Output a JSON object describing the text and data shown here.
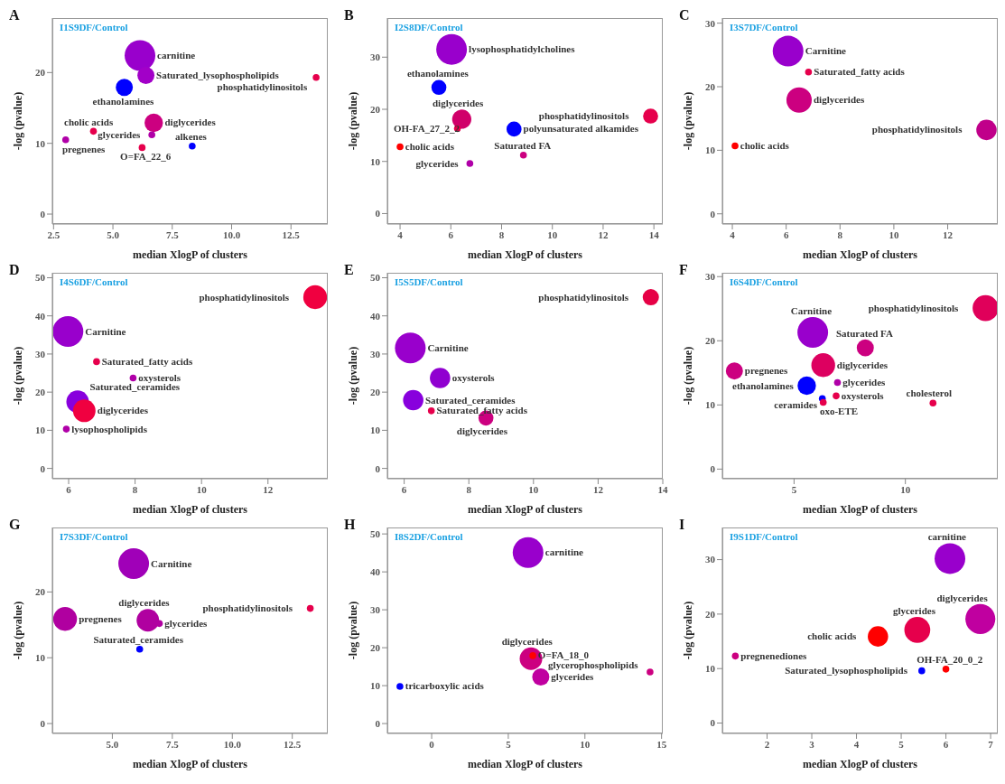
{
  "chart_data": [
    {
      "type": "bubble",
      "title": "I1S9DF/Control",
      "xlabel": "median XlogP of clusters",
      "ylabel": "-log (pvalue)",
      "xlim": [
        2.45,
        14.05
      ],
      "ylim": [
        -1.4,
        27.7
      ],
      "xticks": [
        {
          "value": 2.5,
          "label": "2.5"
        },
        {
          "value": 5,
          "label": "5.0"
        },
        {
          "value": 7.5,
          "label": "7.5"
        },
        {
          "value": 10,
          "label": "10.0"
        },
        {
          "value": 12.5,
          "label": "12.5"
        }
      ],
      "yticks": [
        0,
        10,
        20
      ],
      "x": [
        6.14,
        6.39,
        5.48,
        13.56,
        6.72,
        4.18,
        3.01,
        6.64,
        6.23,
        8.34
      ],
      "values": [
        22.4,
        19.6,
        17.9,
        19.3,
        12.9,
        11.7,
        10.5,
        11.2,
        9.4,
        9.6
      ],
      "sizes": [
        1,
        0.31,
        0.31,
        0.05,
        0.36,
        0.05,
        0.05,
        0.05,
        0.05,
        0.05
      ],
      "colors": [
        "#9900cc",
        "#a200c8",
        "#0000ff",
        "#e6004c",
        "#cc0080",
        "#e6004c",
        "#b000a8",
        "#b000a8",
        "#e6004c",
        "#0000ff"
      ],
      "annotations": [
        "A",
        {
          "text": "carnitine",
          "x": 6.14,
          "y": 22.4
        },
        {
          "text": "Saturated_lysophospholipids",
          "x": 6.39,
          "y": 19.6
        },
        {
          "text": "ethanolamines",
          "x": 5.48,
          "y": 17.9
        },
        {
          "text": "phosphatidylinositols",
          "x": 13.56,
          "y": 19.3
        },
        {
          "text": "diglycerides",
          "x": 6.72,
          "y": 12.9
        },
        {
          "text": "cholic acids",
          "x": 4.18,
          "y": 11.7
        },
        {
          "text": "pregnenes",
          "x": 3.01,
          "y": 10.5
        },
        {
          "text": "glycerides",
          "x": 6.64,
          "y": 11.2
        },
        {
          "text": "O=FA_22_6",
          "x": 6.23,
          "y": 9.4
        },
        {
          "text": "alkenes",
          "x": 8.34,
          "y": 9.6
        }
      ]
    },
    {
      "type": "bubble",
      "title": "I2S8DF/Control",
      "xlabel": "median XlogP of clusters",
      "ylabel": "-log (pvalue)",
      "xlim": [
        3.5,
        14.35
      ],
      "ylim": [
        -2,
        37.5
      ],
      "xticks": [
        4,
        6,
        8,
        10,
        12,
        14
      ],
      "yticks": [
        0,
        10,
        20,
        30
      ],
      "x": [
        6.03,
        5.53,
        6.43,
        6.26,
        4.0,
        6.75,
        8.49,
        8.86,
        13.87
      ],
      "values": [
        31.5,
        24.2,
        18.1,
        16.3,
        12.8,
        9.6,
        16.2,
        11.2,
        18.7
      ],
      "sizes": [
        1,
        0.24,
        0.39,
        0.05,
        0.05,
        0.05,
        0.24,
        0.05,
        0.24
      ],
      "colors": [
        "#9900cc",
        "#0000ff",
        "#d0006a",
        "#e6004c",
        "#ff0000",
        "#b000a8",
        "#0000ff",
        "#cc0080",
        "#e6004c"
      ],
      "annotations": [
        "B",
        {
          "text": "lysophosphatidylcholines",
          "x": 6.03,
          "y": 31.5
        },
        {
          "text": "ethanolamines",
          "x": 5.53,
          "y": 24.2
        },
        {
          "text": "diglycerides",
          "x": 6.43,
          "y": 18.1
        },
        {
          "text": "OH-FA_27_2_2",
          "x": 6.26,
          "y": 16.3
        },
        {
          "text": "cholic acids",
          "x": 4.0,
          "y": 12.8
        },
        {
          "text": "glycerides",
          "x": 6.75,
          "y": 9.6
        },
        {
          "text": "polyunsaturated alkamides",
          "x": 8.49,
          "y": 16.2
        },
        {
          "text": "Saturated FA",
          "x": 8.86,
          "y": 11.2
        },
        {
          "text": "phosphatidylinositols",
          "x": 13.87,
          "y": 18.7
        }
      ]
    },
    {
      "type": "bubble",
      "title": "I3S7DF/Control",
      "xlabel": "median XlogP of clusters",
      "ylabel": "-log (pvalue)",
      "xlim": [
        3.63,
        13.86
      ],
      "ylim": [
        -1.6,
        30.8
      ],
      "xticks": [
        4,
        6,
        8,
        10,
        12
      ],
      "yticks": [
        0,
        10,
        20,
        30
      ],
      "x": [
        6.07,
        6.83,
        6.48,
        4.1,
        13.44
      ],
      "values": [
        25.6,
        22.3,
        17.9,
        10.7,
        13.2
      ],
      "sizes": [
        1,
        0.05,
        0.68,
        0.05,
        0.44
      ],
      "colors": [
        "#9900cc",
        "#e6004c",
        "#cc0080",
        "#ff0000",
        "#c0008a"
      ],
      "annotations": [
        "C",
        {
          "text": "Carnitine",
          "x": 6.07,
          "y": 25.6
        },
        {
          "text": "Saturated_fatty acids",
          "x": 6.83,
          "y": 22.3
        },
        {
          "text": "diglycerides",
          "x": 6.48,
          "y": 17.9
        },
        {
          "text": "cholic acids",
          "x": 4.1,
          "y": 10.7
        },
        {
          "text": "phosphatidylinositols",
          "x": 13.44,
          "y": 13.2
        }
      ]
    },
    {
      "type": "bubble",
      "title": "I4S6DF/Control",
      "xlabel": "median XlogP of clusters",
      "ylabel": "-log (pvalue)",
      "xlim": [
        5.51,
        13.8
      ],
      "ylim": [
        -2.7,
        51.3
      ],
      "xticks": [
        6,
        8,
        10,
        12
      ],
      "yticks": [
        0,
        10,
        20,
        30,
        40,
        50
      ],
      "x": [
        13.42,
        5.98,
        6.84,
        7.94,
        6.27,
        6.47,
        5.93
      ],
      "values": [
        44.9,
        35.9,
        28.0,
        23.7,
        17.5,
        15.1,
        10.3
      ],
      "sizes": [
        0.6,
        1,
        0.05,
        0.05,
        0.54,
        0.54,
        0.05
      ],
      "colors": [
        "#f00040",
        "#9900cc",
        "#e6004c",
        "#b000a8",
        "#8800dd",
        "#f00040",
        "#b000a8"
      ],
      "annotations": [
        "D",
        {
          "text": "phosphatidylinositols",
          "x": 13.42,
          "y": 44.9
        },
        {
          "text": "Carnitine",
          "x": 5.98,
          "y": 35.9
        },
        {
          "text": "Saturated_fatty acids",
          "x": 6.84,
          "y": 28.0
        },
        {
          "text": "oxysterols",
          "x": 7.94,
          "y": 23.7
        },
        {
          "text": "Saturated_ceramides",
          "x": 6.27,
          "y": 17.5
        },
        {
          "text": "diglycerides",
          "x": 6.47,
          "y": 15.1
        },
        {
          "text": "lysophospholipids",
          "x": 5.93,
          "y": 10.3
        }
      ]
    },
    {
      "type": "bubble",
      "title": "I5S5DF/Control",
      "xlabel": "median XlogP of clusters",
      "ylabel": "-log (pvalue)",
      "xlim": [
        5.48,
        14.0
      ],
      "ylim": [
        -2.7,
        51.3
      ],
      "xticks": [
        6,
        8,
        10,
        12,
        14
      ],
      "yticks": [
        0,
        10,
        20,
        30,
        40,
        50
      ],
      "x": [
        6.19,
        7.11,
        6.28,
        6.84,
        8.53,
        13.63
      ],
      "values": [
        31.6,
        23.7,
        17.9,
        15.1,
        13.2,
        44.9
      ],
      "sizes": [
        1,
        0.44,
        0.44,
        0.05,
        0.24,
        0.28
      ],
      "colors": [
        "#9900cc",
        "#9000d0",
        "#8800dd",
        "#e6004c",
        "#cc0080",
        "#e60045"
      ],
      "annotations": [
        "E",
        {
          "text": "Carnitine",
          "x": 6.19,
          "y": 31.6
        },
        {
          "text": "oxysterols",
          "x": 7.11,
          "y": 23.7
        },
        {
          "text": "Saturated_ceramides",
          "x": 6.28,
          "y": 17.9
        },
        {
          "text": "Saturated_fatty acids",
          "x": 6.84,
          "y": 15.1
        },
        {
          "text": "diglycerides",
          "x": 8.53,
          "y": 13.2
        },
        {
          "text": "phosphatidylinositols",
          "x": 13.63,
          "y": 44.9
        }
      ]
    },
    {
      "type": "bubble",
      "title": "I6S4DF/Control",
      "xlabel": "median XlogP of clusters",
      "ylabel": "-log (pvalue)",
      "xlim": [
        1.78,
        14.15
      ],
      "ylim": [
        -1.5,
        30.6
      ],
      "xticks": [
        5,
        10
      ],
      "yticks": [
        0,
        10,
        20,
        30
      ],
      "x": [
        13.6,
        5.84,
        8.2,
        6.31,
        2.32,
        5.57,
        6.95,
        6.27,
        6.31,
        6.89,
        11.24
      ],
      "values": [
        25.1,
        21.3,
        18.9,
        16.2,
        15.3,
        13.0,
        13.5,
        11.0,
        10.4,
        11.4,
        10.3
      ],
      "sizes": [
        0.71,
        1,
        0.31,
        0.6,
        0.31,
        0.36,
        0.05,
        0.05,
        0.05,
        0.05,
        0.05
      ],
      "colors": [
        "#e0005a",
        "#9900cc",
        "#cc0080",
        "#dd0060",
        "#cc0080",
        "#0000ff",
        "#b000a8",
        "#0000ff",
        "#e6004c",
        "#e6004c",
        "#e6004c"
      ],
      "annotations": [
        "F",
        {
          "text": "phosphatidylinositols",
          "x": 13.6,
          "y": 25.1
        },
        {
          "text": "Carnitine",
          "x": 5.84,
          "y": 21.3
        },
        {
          "text": "Saturated FA",
          "x": 8.2,
          "y": 18.9
        },
        {
          "text": "diglycerides",
          "x": 6.31,
          "y": 16.2
        },
        {
          "text": "pregnenes",
          "x": 2.32,
          "y": 15.3
        },
        {
          "text": "ethanolamines",
          "x": 5.57,
          "y": 13.0
        },
        {
          "text": "glycerides",
          "x": 6.95,
          "y": 13.5
        },
        {
          "text": "ceramides",
          "x": 6.27,
          "y": 11.0
        },
        {
          "text": "oxo-ETE",
          "x": 6.31,
          "y": 10.4
        },
        {
          "text": "oxysterols",
          "x": 6.89,
          "y": 11.4
        },
        {
          "text": "cholesterol",
          "x": 11.24,
          "y": 10.3
        }
      ]
    },
    {
      "type": "bubble",
      "title": "I7S3DF/Control",
      "xlabel": "median XlogP of clusters",
      "ylabel": "-log (pvalue)",
      "xlim": [
        2.5,
        13.98
      ],
      "ylim": [
        -1.5,
        29.8
      ],
      "xticks": [
        {
          "value": 5,
          "label": "5.0"
        },
        {
          "value": 7.5,
          "label": "7.5"
        },
        {
          "value": 10,
          "label": "10.0"
        },
        {
          "value": 12.5,
          "label": "12.5"
        }
      ],
      "yticks": [
        0,
        10,
        20
      ],
      "x": [
        5.89,
        3.03,
        6.48,
        6.96,
        6.14,
        13.25
      ],
      "values": [
        24.3,
        15.9,
        15.7,
        15.2,
        11.3,
        17.5
      ],
      "sizes": [
        1,
        0.6,
        0.54,
        0.05,
        0.05,
        0.05
      ],
      "colors": [
        "#a000b8",
        "#b000a0",
        "#b000a0",
        "#b000a0",
        "#0000ff",
        "#e6004c"
      ],
      "annotations": [
        "G",
        {
          "text": "Carnitine",
          "x": 5.89,
          "y": 24.3
        },
        {
          "text": "pregnenes",
          "x": 3.03,
          "y": 15.9
        },
        {
          "text": "diglycerides",
          "x": 6.48,
          "y": 15.7
        },
        {
          "text": "glycerides",
          "x": 6.96,
          "y": 15.2
        },
        {
          "text": "Saturated_ceramides",
          "x": 6.14,
          "y": 11.3
        },
        {
          "text": "phosphatidylinositols",
          "x": 13.25,
          "y": 17.5
        }
      ]
    },
    {
      "type": "bubble",
      "title": "I8S2DF/Control",
      "xlabel": "median XlogP of clusters",
      "ylabel": "-log (pvalue)",
      "xlim": [
        -2.89,
        15.08
      ],
      "ylim": [
        -2.6,
        51.7
      ],
      "xticks": [
        0,
        5,
        10,
        15
      ],
      "yticks": [
        0,
        10,
        20,
        30,
        40,
        50
      ],
      "x": [
        -2.07,
        6.29,
        6.48,
        6.6,
        7.12,
        14.25
      ],
      "values": [
        9.8,
        45.1,
        17.1,
        17.9,
        12.3,
        13.6
      ],
      "sizes": [
        0.05,
        1,
        0.54,
        0.05,
        0.31,
        0.05
      ],
      "colors": [
        "#0000ff",
        "#9900cc",
        "#cc0080",
        "#ff0000",
        "#c000a0",
        "#cc0080"
      ],
      "annotations": [
        "H",
        {
          "text": "tricarboxylic acids",
          "x": -2.07,
          "y": 9.8
        },
        {
          "text": "carnitine",
          "x": 6.29,
          "y": 45.1
        },
        {
          "text": "diglycerides",
          "x": 6.48,
          "y": 17.1
        },
        {
          "text": "O=FA_18_0",
          "x": 6.6,
          "y": 17.9
        },
        {
          "text": "glycerides",
          "x": 7.12,
          "y": 12.3
        },
        {
          "text": "glycerophospholipids",
          "x": 14.25,
          "y": 13.6
        }
      ]
    },
    {
      "type": "bubble",
      "title": "I9S1DF/Control",
      "xlabel": "median XlogP of clusters",
      "ylabel": "-log (pvalue)",
      "xlim": [
        1.0,
        7.16
      ],
      "ylim": [
        -1.9,
        35.9
      ],
      "xticks": [
        2,
        3,
        4,
        5,
        6,
        7
      ],
      "yticks": [
        0,
        10,
        20,
        30
      ],
      "x": [
        6.09,
        6.77,
        5.36,
        4.48,
        1.29,
        5.46,
        6.0
      ],
      "values": [
        30.2,
        19.1,
        17.1,
        15.9,
        12.3,
        9.6,
        9.9
      ],
      "sizes": [
        1,
        0.95,
        0.71,
        0.44,
        0.05,
        0.05,
        0.05
      ],
      "colors": [
        "#9900cc",
        "#c000a0",
        "#e6004c",
        "#ff0000",
        "#cc0080",
        "#0000ff",
        "#ff0000"
      ],
      "annotations": [
        "I",
        {
          "text": "carnitine",
          "x": 6.09,
          "y": 30.2
        },
        {
          "text": "diglycerides",
          "x": 6.77,
          "y": 19.1
        },
        {
          "text": "glycerides",
          "x": 5.36,
          "y": 17.1
        },
        {
          "text": "cholic acids",
          "x": 4.48,
          "y": 15.9
        },
        {
          "text": "pregnenediones",
          "x": 1.29,
          "y": 12.3
        },
        {
          "text": "Saturated_lysophospholipids",
          "x": 5.46,
          "y": 9.6
        },
        {
          "text": "OH-FA_20_0_2",
          "x": 6.0,
          "y": 9.9
        }
      ]
    }
  ]
}
